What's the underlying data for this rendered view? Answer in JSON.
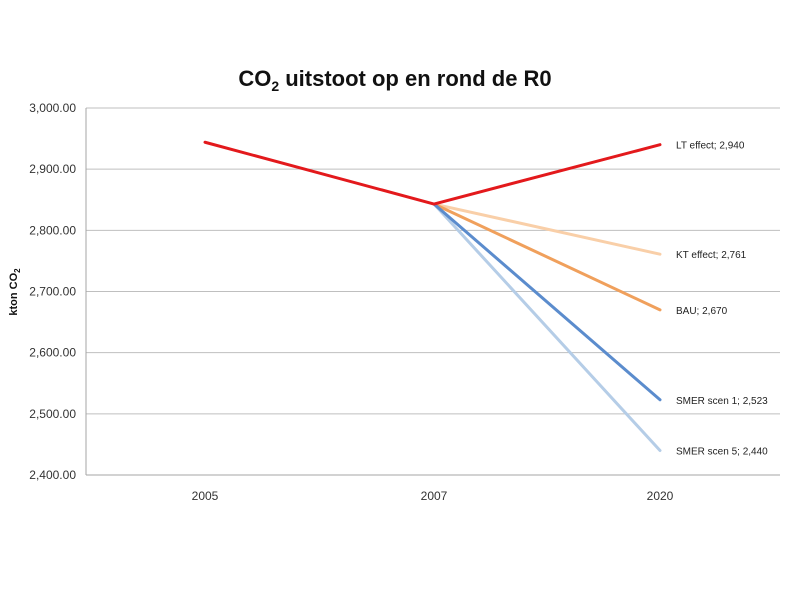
{
  "chart_data": {
    "type": "line",
    "title": {
      "main": "CO",
      "sub": "2",
      "rest": " uitstoot op en rond de R0"
    },
    "ylabel": {
      "main": "kton CO",
      "sub": "2"
    },
    "xlabel": "",
    "categories": [
      "2005",
      "2007",
      "2020"
    ],
    "ylim": [
      2400,
      3000
    ],
    "yticks": [
      2400,
      2500,
      2600,
      2700,
      2800,
      2900,
      3000
    ],
    "ytick_labels": [
      "2,400.00",
      "2,500.00",
      "2,600.00",
      "2,700.00",
      "2,800.00",
      "2,900.00",
      "3,000.00"
    ],
    "grid": true,
    "legend": "none",
    "series": [
      {
        "name": "LT effect",
        "color": "#e3191c",
        "values": [
          2944,
          2843,
          2940
        ],
        "label": "LT effect; 2,940"
      },
      {
        "name": "KT effect",
        "color": "#f9cfa8",
        "values": [
          null,
          2843,
          2761
        ],
        "label": "KT effect; 2,761"
      },
      {
        "name": "BAU",
        "color": "#f0a05c",
        "values": [
          null,
          2843,
          2670
        ],
        "label": "BAU; 2,670"
      },
      {
        "name": "SMER scen 1",
        "color": "#5b8ccd",
        "values": [
          null,
          2843,
          2523
        ],
        "label": "SMER scen 1; 2,523"
      },
      {
        "name": "SMER scen 5",
        "color": "#b5cde7",
        "values": [
          null,
          2843,
          2440
        ],
        "label": "SMER scen 5; 2,440"
      }
    ]
  }
}
